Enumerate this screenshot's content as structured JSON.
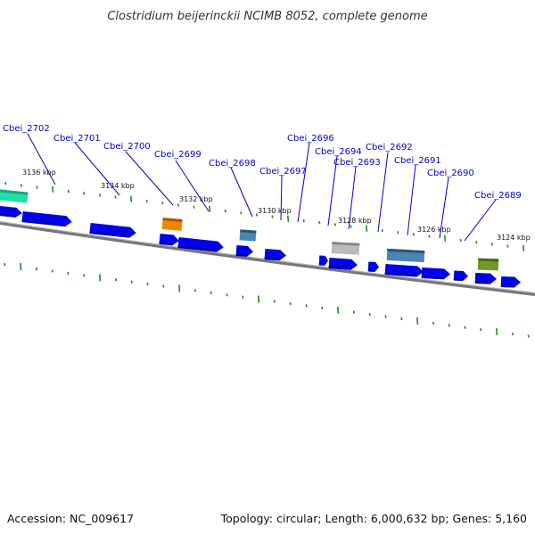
{
  "title": "Clostridium beijerinckii NCIMB 8052, complete genome",
  "footer": {
    "accession": "Accession: NC_009617",
    "summary": "Topology: circular; Length: 6,000,632 bp; Genes: 5,160"
  },
  "colors": {
    "cds": "#0000ee",
    "backbone": "#777777",
    "ticks": "#228822",
    "label_lines": "#0000cc",
    "teal_feature": "#22ddaa",
    "orange_feature": "#ee8800",
    "steelblue_feature": "#4a86b0",
    "gray_feature": "#bbbbbb",
    "olive_feature": "#6f9a2a"
  },
  "kbp_labels": [
    "3136 kbp",
    "3134 kbp",
    "3132 kbp",
    "3130 kbp",
    "3128 kbp",
    "3126 kbp",
    "3124 kbp"
  ],
  "gene_labels": [
    "Cbei_2702",
    "Cbei_2701",
    "Cbei_2700",
    "Cbei_2699",
    "Cbei_2698",
    "Cbei_2697",
    "Cbei_2696",
    "Cbei_2694",
    "Cbei_2693",
    "Cbei_2692",
    "Cbei_2691",
    "Cbei_2690",
    "Cbei_2689"
  ]
}
